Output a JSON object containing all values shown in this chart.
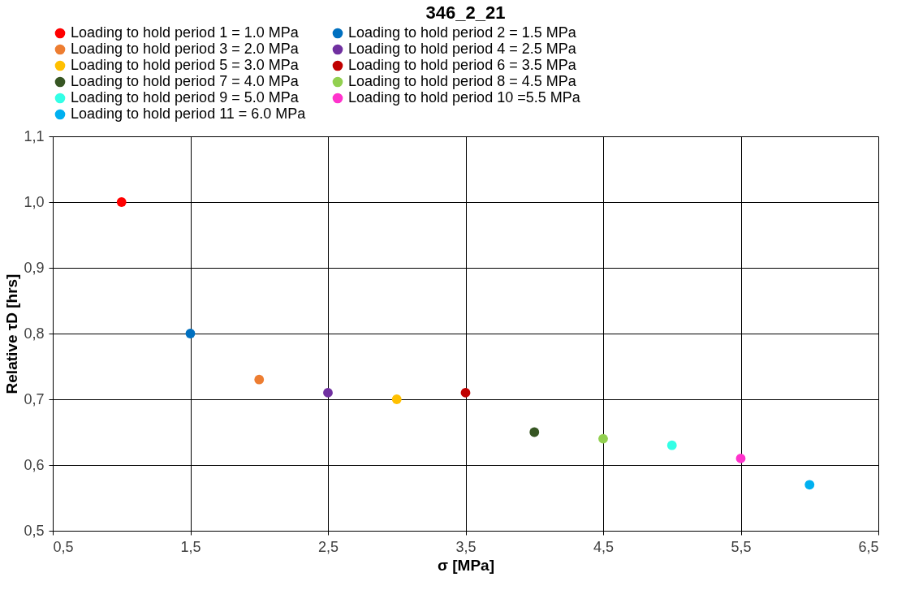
{
  "chart_data": {
    "type": "scatter",
    "title": "346_2_21",
    "xlabel": "σ [MPa]",
    "ylabel": "Relative τD [hrs]",
    "xlim": [
      0.5,
      6.5
    ],
    "ylim": [
      0.5,
      1.1
    ],
    "xticks": [
      {
        "value": 0.5,
        "label": "0,5"
      },
      {
        "value": 1.5,
        "label": "1,5"
      },
      {
        "value": 2.5,
        "label": "2,5"
      },
      {
        "value": 3.5,
        "label": "3,5"
      },
      {
        "value": 4.5,
        "label": "4,5"
      },
      {
        "value": 5.5,
        "label": "5,5"
      },
      {
        "value": 6.5,
        "label": "6,5"
      }
    ],
    "yticks": [
      {
        "value": 0.5,
        "label": "0,5"
      },
      {
        "value": 0.6,
        "label": "0,6"
      },
      {
        "value": 0.7,
        "label": "0,7"
      },
      {
        "value": 0.8,
        "label": "0,8"
      },
      {
        "value": 0.9,
        "label": "0,9"
      },
      {
        "value": 1.0,
        "label": "1,0"
      },
      {
        "value": 1.1,
        "label": "1,1"
      }
    ],
    "grid": true,
    "legend": "top",
    "marker": "circle",
    "series": [
      {
        "name": "Loading to hold period 1 = 1.0 MPa",
        "color": "#ff0000",
        "x": [
          1.0
        ],
        "values": [
          1.0
        ]
      },
      {
        "name": "Loading to hold period 2 = 1.5 MPa",
        "color": "#0070c0",
        "x": [
          1.5
        ],
        "values": [
          0.8
        ]
      },
      {
        "name": "Loading to hold period 3 = 2.0 MPa",
        "color": "#ed7d31",
        "x": [
          2.0
        ],
        "values": [
          0.73
        ]
      },
      {
        "name": "Loading to hold period 4 = 2.5 MPa",
        "color": "#7030a0",
        "x": [
          2.5
        ],
        "values": [
          0.71
        ]
      },
      {
        "name": "Loading to hold period 5 = 3.0 MPa",
        "color": "#ffc000",
        "x": [
          3.0
        ],
        "values": [
          0.7
        ]
      },
      {
        "name": "Loading to hold period 6 = 3.5 MPa",
        "color": "#c00000",
        "x": [
          3.5
        ],
        "values": [
          0.71
        ]
      },
      {
        "name": "Loading to hold period 7 = 4.0 MPa",
        "color": "#375623",
        "x": [
          4.0
        ],
        "values": [
          0.65
        ]
      },
      {
        "name": "Loading to hold period 8 = 4.5 MPa",
        "color": "#92d050",
        "x": [
          4.5
        ],
        "values": [
          0.64
        ]
      },
      {
        "name": "Loading to hold period 9 = 5.0 MPa",
        "color": "#33ffe6",
        "x": [
          5.0
        ],
        "values": [
          0.63
        ]
      },
      {
        "name": "Loading to hold period 10 =5.5 MPa",
        "color": "#ff33cc",
        "x": [
          5.5
        ],
        "values": [
          0.61
        ]
      },
      {
        "name": "Loading to hold period 11 = 6.0 MPa",
        "color": "#00b0f0",
        "x": [
          6.0
        ],
        "values": [
          0.57
        ]
      }
    ]
  }
}
